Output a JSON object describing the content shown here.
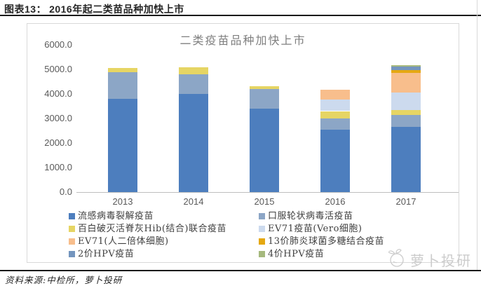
{
  "header": {
    "figure_label": "图表13：",
    "figure_title": "2016年起二类苗品种加快上市"
  },
  "chart_data": {
    "type": "bar",
    "stacked": true,
    "title": "二类疫苗品种加快上市",
    "categories": [
      "2013",
      "2014",
      "2015",
      "2016",
      "2017"
    ],
    "series": [
      {
        "name": "流感病毒裂解疫苗",
        "color": "#4d7ebe",
        "values": [
          3800,
          4000,
          3400,
          2550,
          2650
        ]
      },
      {
        "name": "口服轮状病毒活疫苗",
        "color": "#8ca6c6",
        "values": [
          1100,
          800,
          800,
          450,
          500
        ]
      },
      {
        "name": "百白破灭活脊灰Hib(结合)联合疫苗",
        "color": "#e6d564",
        "values": [
          150,
          300,
          120,
          300,
          180
        ]
      },
      {
        "name": "EV71疫苗(Vero细胞)",
        "color": "#ccdaee",
        "values": [
          0,
          0,
          0,
          460,
          720
        ]
      },
      {
        "name": "EV71(人二倍体细胞)",
        "color": "#f8be8c",
        "values": [
          0,
          0,
          0,
          400,
          810
        ]
      },
      {
        "name": "13价肺炎球菌多糖结合疫苗",
        "color": "#e5a812",
        "values": [
          0,
          0,
          0,
          0,
          100
        ]
      },
      {
        "name": "2价HPV疫苗",
        "color": "#7495be",
        "values": [
          0,
          0,
          0,
          0,
          150
        ]
      },
      {
        "name": "4价HPV疫苗",
        "color": "#a6b97e",
        "values": [
          0,
          0,
          0,
          0,
          60
        ]
      }
    ],
    "ylim": [
      0,
      6000
    ],
    "y_ticks": [
      "0.0",
      "1000.0",
      "2000.0",
      "3000.0",
      "4000.0",
      "5000.0",
      "6000.0"
    ],
    "gridlines": false,
    "legend_position": "bottom-two-columns"
  },
  "watermark": {
    "text": "萝卜投研",
    "icon": "radish-logo-icon"
  },
  "source": {
    "text": "资料来源:中检所，萝卜投研"
  }
}
